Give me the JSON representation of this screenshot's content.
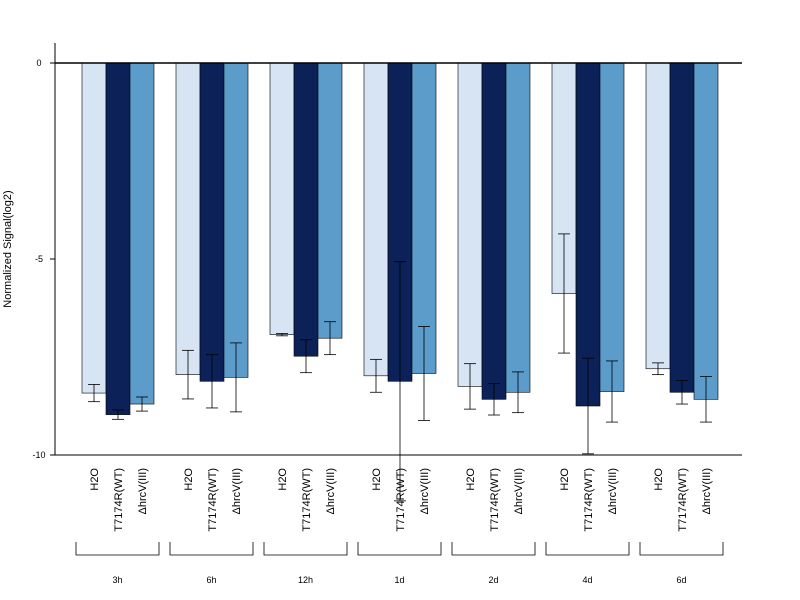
{
  "chart_data": {
    "type": "bar",
    "title": "",
    "xlabel": "",
    "ylabel": "Normalized Signal(log2)",
    "ylim": [
      -10,
      0.5
    ],
    "yticks": [
      0,
      -5,
      -10
    ],
    "grid": false,
    "legend": "none",
    "groups": [
      "3h",
      "6h",
      "12h",
      "1d",
      "2d",
      "4d",
      "6d"
    ],
    "bar_labels": [
      "H2O",
      "T7174R(WT)",
      "ΔhrcV(III)"
    ],
    "series": [
      {
        "name": "H2O",
        "color": "#d6e4f3",
        "values": [
          -8.42,
          -7.95,
          -6.93,
          -7.98,
          -8.25,
          -5.88,
          -7.8
        ],
        "error": [
          0.22,
          0.62,
          0.03,
          0.42,
          0.58,
          1.52,
          0.15
        ]
      },
      {
        "name": "T7174R(WT)",
        "color": "#0b2158",
        "values": [
          -8.97,
          -8.12,
          -7.48,
          -8.12,
          -8.58,
          -8.75,
          -8.4
        ],
        "error": [
          0.12,
          0.68,
          0.42,
          3.05,
          0.4,
          1.22,
          0.3
        ]
      },
      {
        "name": "ΔhrcV(III)",
        "color": "#5b9ccb",
        "values": [
          -8.7,
          -8.02,
          -7.02,
          -7.92,
          -8.4,
          -8.38,
          -8.58
        ],
        "error": [
          0.18,
          0.88,
          0.42,
          1.2,
          0.52,
          0.78,
          0.58
        ]
      }
    ]
  }
}
